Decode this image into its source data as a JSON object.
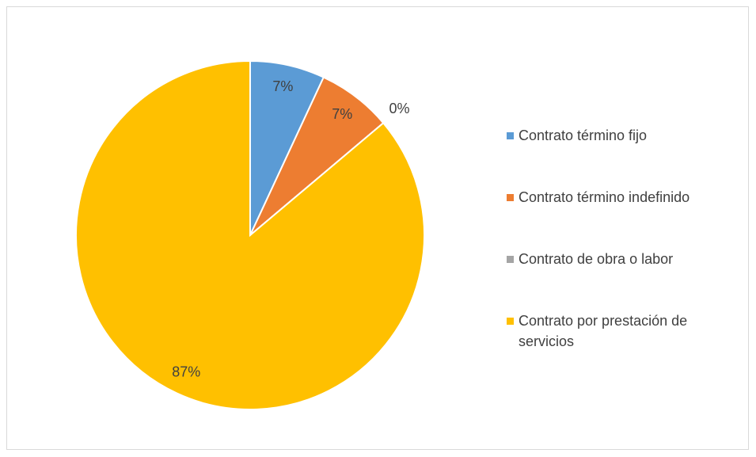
{
  "chart_data": {
    "type": "pie",
    "categories": [
      "Contrato término fijo",
      "Contrato término indefinido",
      "Contrato de obra o labor",
      "Contrato por prestación de servicios"
    ],
    "values": [
      7,
      7,
      0,
      87
    ],
    "value_labels": [
      "7%",
      "7%",
      "0%",
      "87%"
    ],
    "colors": [
      "#5b9bd5",
      "#ed7d31",
      "#a5a5a5",
      "#ffc000"
    ],
    "legend": "right"
  }
}
